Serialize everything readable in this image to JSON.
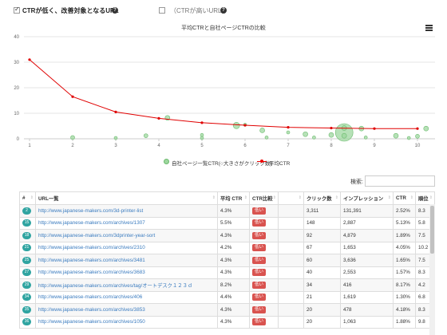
{
  "filters": {
    "low_ctr_label": "CTRが低く、改善対象となるURL",
    "high_ctr_label": "（CTRが高いURL）"
  },
  "chart": {
    "title": "平均CTRと自社ページCTRの比較"
  },
  "chart_data": {
    "type": "line",
    "title": "平均CTRと自社ページCTRの比較",
    "xlim": [
      1,
      10
    ],
    "ylim": [
      0,
      40
    ],
    "x_ticks": [
      1,
      2,
      3,
      4,
      5,
      6,
      7,
      8,
      9,
      10
    ],
    "y_ticks": [
      0,
      10,
      20,
      30,
      40
    ],
    "legend_position": "bottom-center",
    "series": [
      {
        "name": "平均CTR",
        "type": "line",
        "color": "#e00000",
        "x": [
          1,
          2,
          3,
          4,
          5,
          6,
          7,
          8,
          9,
          10
        ],
        "y": [
          31,
          16.5,
          10.5,
          8,
          6.3,
          5.3,
          4.5,
          4.2,
          4.0,
          4.0
        ]
      },
      {
        "name": "自社ページ一覧CTR(○大きさがクリック数)",
        "type": "scatter",
        "color": "#7cc67e",
        "points": [
          {
            "x": 2.0,
            "y": 0.5,
            "r": 2.5
          },
          {
            "x": 3.0,
            "y": 0.3,
            "r": 2
          },
          {
            "x": 3.7,
            "y": 1.2,
            "r": 2.5
          },
          {
            "x": 4.2,
            "y": 8.2,
            "r": 3
          },
          {
            "x": 5.0,
            "y": 1.5,
            "r": 2
          },
          {
            "x": 5.0,
            "y": 0.3,
            "r": 2
          },
          {
            "x": 5.8,
            "y": 5.2,
            "r": 4
          },
          {
            "x": 6.0,
            "y": 5.5,
            "r": 2
          },
          {
            "x": 6.4,
            "y": 3.3,
            "r": 3
          },
          {
            "x": 6.5,
            "y": 0.5,
            "r": 2
          },
          {
            "x": 7.0,
            "y": 2.5,
            "r": 2
          },
          {
            "x": 7.4,
            "y": 1.8,
            "r": 3
          },
          {
            "x": 7.6,
            "y": 0.5,
            "r": 2
          },
          {
            "x": 8.0,
            "y": 1.5,
            "r": 3
          },
          {
            "x": 8.3,
            "y": 2.5,
            "r": 11
          },
          {
            "x": 8.3,
            "y": 4.2,
            "r": 3
          },
          {
            "x": 8.3,
            "y": 1.2,
            "r": 3
          },
          {
            "x": 8.7,
            "y": 4.0,
            "r": 3
          },
          {
            "x": 8.8,
            "y": 0.5,
            "r": 2
          },
          {
            "x": 9.5,
            "y": 1.2,
            "r": 3
          },
          {
            "x": 9.8,
            "y": 0.3,
            "r": 2
          },
          {
            "x": 10.0,
            "y": 1.0,
            "r": 2.5
          },
          {
            "x": 10.2,
            "y": 4.0,
            "r": 3
          }
        ]
      }
    ]
  },
  "legend": {
    "series1": "自社ページ一覧CTR(○大きさがクリック数)",
    "series2": "平均CTR"
  },
  "search": {
    "label": "検索:",
    "value": ""
  },
  "table": {
    "headers": [
      "#",
      "URL一覧",
      "平均 CTR",
      "CTR比較",
      "",
      "クリック数",
      "インプレッション",
      "CTR",
      "順位"
    ],
    "rows": [
      {
        "num": "2",
        "url": "http://www.japanese-makers.com/3d-printer-list",
        "avg_ctr": "4.3%",
        "cmp": "低い",
        "clicks": "3,311",
        "imp": "131,391",
        "ctr": "2.52%",
        "rank": "8.3"
      },
      {
        "num": "15",
        "url": "http://www.japanese-makers.com/archives/1307",
        "avg_ctr": "5.5%",
        "cmp": "低い",
        "clicks": "148",
        "imp": "2,887",
        "ctr": "5.13%",
        "rank": "5.8"
      },
      {
        "num": "18",
        "url": "http://www.japanese-makers.com/3dprinter-year-sort",
        "avg_ctr": "4.3%",
        "cmp": "低い",
        "clicks": "92",
        "imp": "4,879",
        "ctr": "1.89%",
        "rank": "7.5"
      },
      {
        "num": "21",
        "url": "http://www.japanese-makers.com/archives/2310",
        "avg_ctr": "4.2%",
        "cmp": "低い",
        "clicks": "67",
        "imp": "1,653",
        "ctr": "4.05%",
        "rank": "10.2"
      },
      {
        "num": "25",
        "url": "http://www.japanese-makers.com/archives/3481",
        "avg_ctr": "4.3%",
        "cmp": "低い",
        "clicks": "60",
        "imp": "3,636",
        "ctr": "1.65%",
        "rank": "7.5"
      },
      {
        "num": "27",
        "url": "http://www.japanese-makers.com/archives/3683",
        "avg_ctr": "4.3%",
        "cmp": "低い",
        "clicks": "40",
        "imp": "2,553",
        "ctr": "1.57%",
        "rank": "8.3"
      },
      {
        "num": "29",
        "url": "http://www.japanese-makers.com/archives/tag/オートデスク１２３ｄ",
        "avg_ctr": "8.2%",
        "cmp": "低い",
        "clicks": "34",
        "imp": "416",
        "ctr": "8.17%",
        "rank": "4.2"
      },
      {
        "num": "34",
        "url": "http://www.japanese-makers.com/archives/406",
        "avg_ctr": "4.4%",
        "cmp": "低い",
        "clicks": "21",
        "imp": "1,619",
        "ctr": "1.30%",
        "rank": "6.8"
      },
      {
        "num": "35",
        "url": "http://www.japanese-makers.com/archives/3853",
        "avg_ctr": "4.3%",
        "cmp": "低い",
        "clicks": "20",
        "imp": "478",
        "ctr": "4.18%",
        "rank": "8.3"
      },
      {
        "num": "36",
        "url": "http://www.japanese-makers.com/archives/1050",
        "avg_ctr": "4.3%",
        "cmp": "低い",
        "clicks": "20",
        "imp": "1,063",
        "ctr": "1.88%",
        "rank": "9.8"
      }
    ]
  },
  "colors": {
    "accent_teal": "#2fa4a1",
    "badge_red": "#d9534f",
    "link_blue": "#3a7bbf",
    "line_red": "#e00000",
    "bubble_green": "#7cc67e"
  }
}
